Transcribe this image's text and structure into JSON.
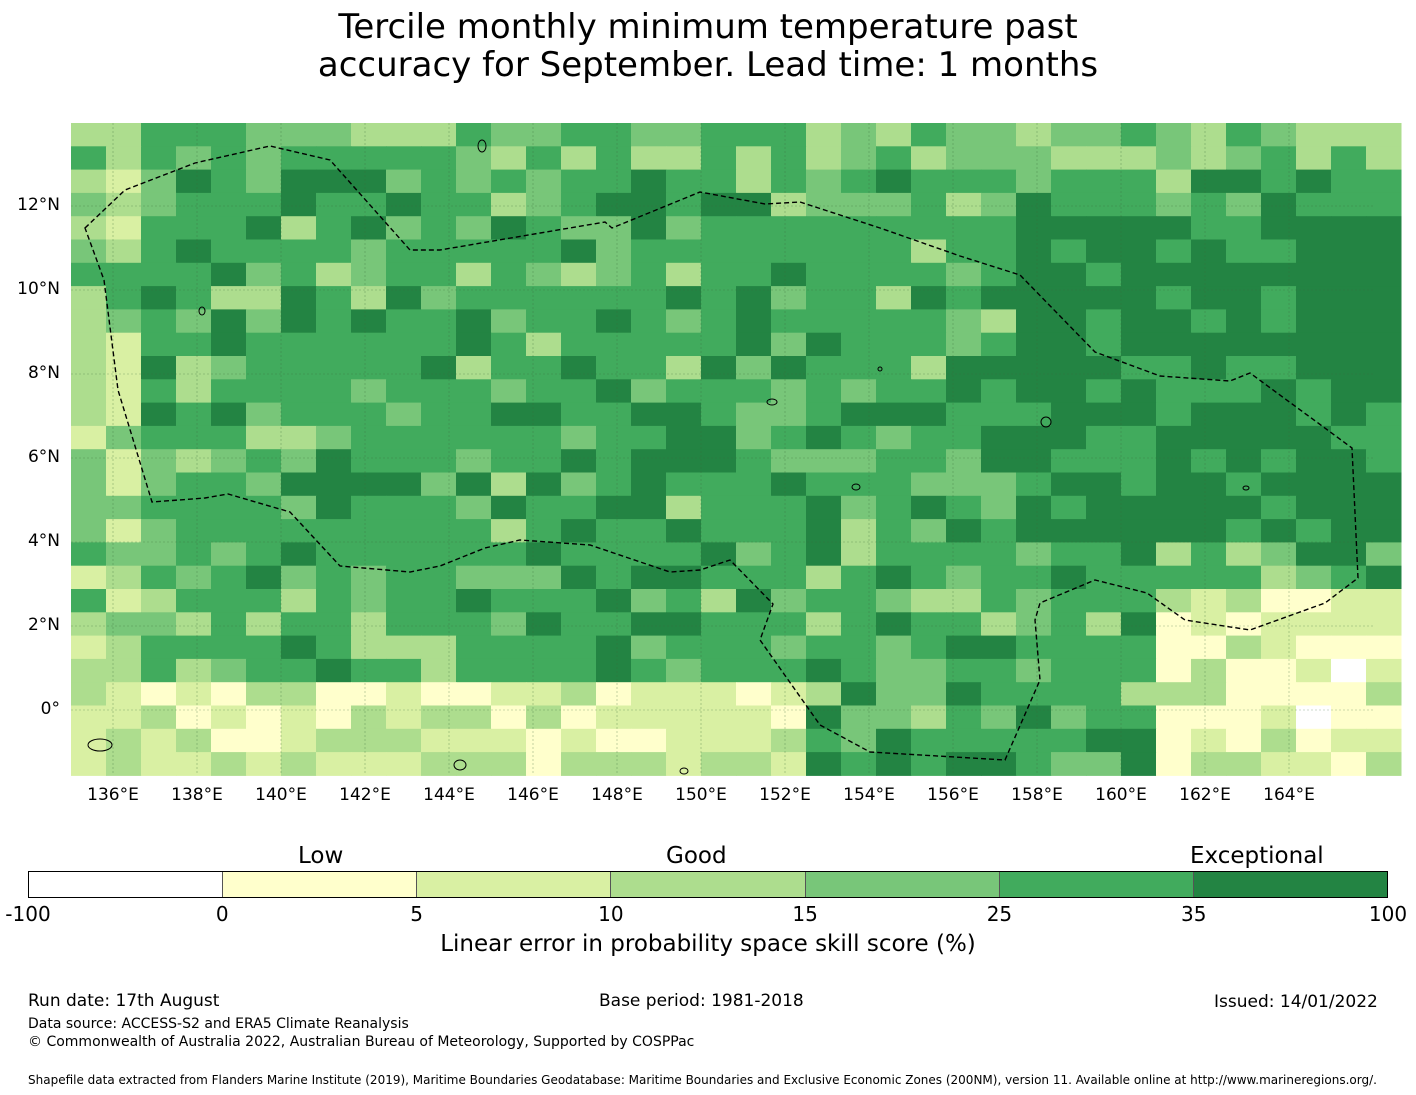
{
  "title": {
    "line1": "Tercile monthly minimum temperature past",
    "line2": "accuracy for September. Lead time: 1 months"
  },
  "map": {
    "lon_labels": [
      "136°E",
      "138°E",
      "140°E",
      "142°E",
      "144°E",
      "146°E",
      "148°E",
      "150°E",
      "152°E",
      "154°E",
      "156°E",
      "158°E",
      "160°E",
      "162°E",
      "164°E"
    ],
    "lat_labels": [
      "12°N",
      "10°N",
      "8°N",
      "6°N",
      "4°N",
      "2°N",
      "0°"
    ],
    "lon_values": [
      136,
      138,
      140,
      142,
      144,
      146,
      148,
      150,
      152,
      154,
      156,
      158,
      160,
      162,
      164
    ],
    "lat_values": [
      12,
      10,
      8,
      6,
      4,
      2,
      0
    ],
    "lon_range": [
      135,
      166
    ],
    "lat_range": [
      -1.5,
      14
    ],
    "boundary": "dashed",
    "grid": true
  },
  "colorbar": {
    "categories": [
      "Low",
      "Good",
      "Exceptional"
    ],
    "ticks": [
      "-100",
      "0",
      "5",
      "10",
      "15",
      "25",
      "35",
      "100"
    ],
    "colors": [
      "#ffffff",
      "#ffffcc",
      "#d9f0a3",
      "#addd8e",
      "#78c679",
      "#41ab5d",
      "#238443"
    ],
    "label": "Linear error in probability space skill score (%)"
  },
  "footer": {
    "run_date": "Run date: 17th August",
    "base_period": "Base period: 1981-2018",
    "issued": "Issued: 14/01/2022",
    "data_source": "Data source: ACCESS-S2 and ERA5 Climate Reanalysis",
    "copyright": "© Commonwealth of Australia 2022, Australian Bureau of Meteorology, Supported by COSPPac",
    "shapefile": "Shapefile data extracted from Flanders Marine Institute (2019), Maritime Boundaries Geodatabase: Maritime Boundaries and Exclusive Economic Zones (200NM), version 11. Available online at http://www.marineregions.org/."
  }
}
